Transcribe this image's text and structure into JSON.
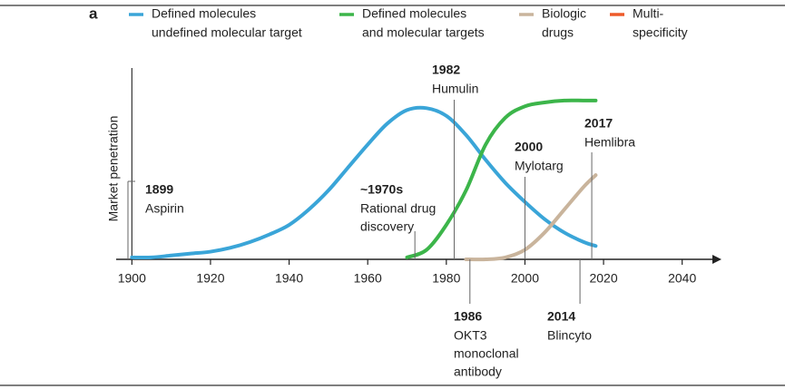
{
  "chart_data": {
    "type": "line",
    "panel": "a",
    "ylabel": "Market penetration",
    "xlim": [
      1896,
      2050
    ],
    "xticks": [
      1900,
      1920,
      1940,
      1960,
      1980,
      2000,
      2020,
      2040
    ],
    "ylim": [
      0,
      100
    ],
    "x": [
      1900,
      1905,
      1910,
      1915,
      1920,
      1925,
      1930,
      1935,
      1940,
      1945,
      1950,
      1955,
      1960,
      1965,
      1970,
      1975,
      1980,
      1985,
      1990,
      1995,
      2000,
      2005,
      2010,
      2015,
      2018
    ],
    "series": [
      {
        "name": [
          "Defined molecules",
          "undefined molecular target"
        ],
        "color": "#3aa5d8",
        "values": [
          1,
          1,
          2,
          3,
          4,
          6,
          9,
          13,
          18,
          26,
          36,
          48,
          60,
          71,
          78,
          79,
          75,
          65,
          52,
          40,
          30,
          21,
          14,
          9,
          7
        ]
      },
      {
        "name": [
          "Defined molecules",
          "and molecular targets"
        ],
        "color": "#3cb54a",
        "values": [
          null,
          null,
          null,
          null,
          null,
          null,
          null,
          null,
          null,
          null,
          null,
          null,
          null,
          null,
          1,
          5,
          18,
          36,
          60,
          74,
          80,
          82,
          83,
          83,
          83
        ]
      },
      {
        "name": [
          "Biologic",
          "drugs"
        ],
        "color": "#c9b49c",
        "values": [
          null,
          null,
          null,
          null,
          null,
          null,
          null,
          null,
          null,
          null,
          null,
          null,
          null,
          null,
          null,
          null,
          null,
          0,
          0,
          1,
          5,
          14,
          26,
          38,
          44
        ]
      },
      {
        "name": [
          "Multi-",
          "specificity"
        ],
        "color": "#ee5a2a",
        "values": [
          null,
          null,
          null,
          null,
          null,
          null,
          null,
          null,
          null,
          null,
          null,
          null,
          null,
          null,
          null,
          null,
          null,
          null,
          null,
          null,
          null,
          null,
          null,
          null,
          null
        ]
      }
    ],
    "annotations": [
      {
        "year": 1899,
        "title": "1899",
        "lines": [
          "Aspirin"
        ]
      },
      {
        "year": 1972,
        "title": "~1970s",
        "lines": [
          "Rational drug",
          "discovery"
        ]
      },
      {
        "year": 1982,
        "title": "1982",
        "lines": [
          "Humulin"
        ]
      },
      {
        "year": 1986,
        "title": "1986",
        "lines": [
          "OKT3",
          "monoclonal",
          "antibody"
        ]
      },
      {
        "year": 2000,
        "title": "2000",
        "lines": [
          "Mylotarg"
        ]
      },
      {
        "year": 2014,
        "title": "2014",
        "lines": [
          "Blincyto"
        ]
      },
      {
        "year": 2017,
        "title": "2017",
        "lines": [
          "Hemlibra"
        ]
      }
    ]
  }
}
